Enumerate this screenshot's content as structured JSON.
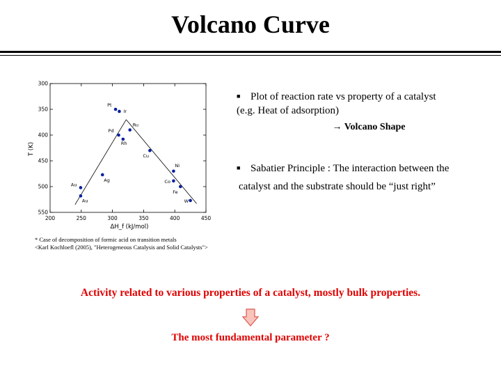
{
  "slide": {
    "title": "Volcano Curve",
    "bullet1_line1": "Plot of reaction rate vs property of a catalyst",
    "bullet1_line2": "(e.g. Heat of adsorption)",
    "shape_note": "→ Volcano Shape",
    "bullet2_line1": "Sabatier Principle : The interaction between the",
    "bullet2_line2": "catalyst and the substrate should be “just right”",
    "bullet_marker": "■",
    "caption_line1": "* Case of decomposition of formic acid on transition metals",
    "caption_line2": "<Karl Kochloefl (2005), \"Heterogeneous Catalysis and Solid Catalysts\">",
    "activity_text": "Activity related to various properties of a catalyst, mostly bulk properties.",
    "question_text": "The most fundamental parameter ?",
    "accent_color": "#e00000",
    "arrow_fill": "#f9c4bc",
    "arrow_stroke": "#d9584d"
  },
  "chart_data": {
    "type": "scatter",
    "xlabel": "ΔH_f (kJ/mol)",
    "ylabel": "T (K)",
    "xlim": [
      200,
      450
    ],
    "ylim": [
      300,
      550
    ],
    "y_inverted": true,
    "xticks": [
      200,
      250,
      300,
      350,
      400,
      450
    ],
    "yticks": [
      300,
      350,
      400,
      450,
      500,
      550
    ],
    "marker_color": "#0a1fa0",
    "points": [
      {
        "label": "Pt",
        "x": 305,
        "y": 350
      },
      {
        "label": "Ir",
        "x": 311,
        "y": 354
      },
      {
        "label": "Pd",
        "x": 310,
        "y": 400
      },
      {
        "label": "Rh",
        "x": 317,
        "y": 408
      },
      {
        "label": "Ru",
        "x": 328,
        "y": 390
      },
      {
        "label": "Cu",
        "x": 360,
        "y": 430
      },
      {
        "label": "Ag",
        "x": 284,
        "y": 477
      },
      {
        "label": "Au",
        "x": 249,
        "y": 502
      },
      {
        "label": "Au",
        "x": 249,
        "y": 518
      },
      {
        "label": "Ni",
        "x": 398,
        "y": 470
      },
      {
        "label": "Co",
        "x": 398,
        "y": 489
      },
      {
        "label": "Fe",
        "x": 409,
        "y": 500
      },
      {
        "label": "W",
        "x": 425,
        "y": 527
      }
    ],
    "trend_lines": [
      {
        "from": [
          240,
          535
        ],
        "to": [
          322,
          370
        ]
      },
      {
        "from": [
          322,
          370
        ],
        "to": [
          435,
          533
        ]
      }
    ]
  }
}
